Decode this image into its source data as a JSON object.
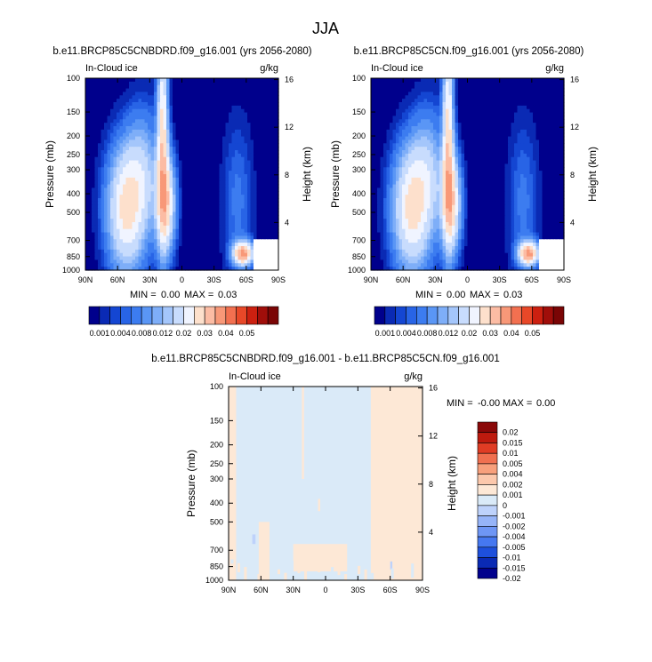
{
  "page_title": "JJA",
  "colors": {
    "seq": [
      "#00008c",
      "#0a2ab4",
      "#1446d2",
      "#2864e6",
      "#3c7cf0",
      "#5a96f5",
      "#7eaef8",
      "#a4c6fb",
      "#c8dcfd",
      "#f0f4ff",
      "#fde0cc",
      "#fcbca4",
      "#f89878",
      "#f27050",
      "#e84828",
      "#cc2010",
      "#a00e0a",
      "#7a0505"
    ],
    "div": [
      "#00008c",
      "#0a2ab4",
      "#1e50dc",
      "#4678f0",
      "#6e96f5",
      "#96b4f8",
      "#bed2fb",
      "#daeaf8",
      "#fde8d6",
      "#fcc8ac",
      "#f8a07c",
      "#f07050",
      "#e03c24",
      "#be1a0e",
      "#8a0808"
    ],
    "diff_background": "#daeaf8",
    "diff_positive": "#fde8d6",
    "diff_negative": "#bed2fb"
  },
  "chart_data": [
    {
      "type": "heatmap",
      "id": "left",
      "title": "b.e11.BRCP85C5CNBDRD.f09_g16.001 (yrs 2056-2080)",
      "variable_label": "In-Cloud ice",
      "units_label": "g/kg",
      "ylabel": "Pressure (mb)",
      "ylabel_right": "Height (km)",
      "x_ticks": [
        "90N",
        "60N",
        "30N",
        "0",
        "30S",
        "60S",
        "90S"
      ],
      "x_values": [
        90,
        60,
        30,
        0,
        -30,
        -60,
        -90
      ],
      "y_ticks": [
        "100",
        "150",
        "200",
        "250",
        "300",
        "400",
        "500",
        "700",
        "850",
        "1000"
      ],
      "y_values": [
        100,
        150,
        200,
        250,
        300,
        400,
        500,
        700,
        850,
        1000
      ],
      "right_ticks": [
        "16",
        "12",
        "8",
        "4"
      ],
      "right_values": [
        16,
        12,
        8,
        4
      ],
      "min_label": "MIN =",
      "min_value": "0.00",
      "max_label": "MAX =",
      "max_value": "0.03",
      "features": [
        {
          "lat": 52,
          "p": 480,
          "dlat": 18,
          "dp": 360,
          "peak": 0.021
        },
        {
          "lat": 18,
          "p": 180,
          "dlat": 5,
          "dp": 220,
          "peak": 0.02
        },
        {
          "lat": 15,
          "p": 450,
          "dlat": 9,
          "dp": 260,
          "peak": 0.021
        },
        {
          "lat": 36,
          "p": 300,
          "dlat": 15,
          "dp": 220,
          "peak": 0.009
        },
        {
          "lat": -52,
          "p": 440,
          "dlat": 14,
          "dp": 420,
          "peak": 0.0045
        },
        {
          "lat": -57,
          "p": 820,
          "dlat": 9,
          "dp": 110,
          "peak": 0.031
        }
      ]
    },
    {
      "type": "heatmap",
      "id": "right",
      "title": "b.e11.BRCP85C5CN.f09_g16.001 (yrs 2056-2080)",
      "variable_label": "In-Cloud ice",
      "units_label": "g/kg",
      "ylabel": "Pressure (mb)",
      "ylabel_right": "Height (km)",
      "x_ticks": [
        "90N",
        "60N",
        "30N",
        "0",
        "30S",
        "60S",
        "90S"
      ],
      "x_values": [
        90,
        60,
        30,
        0,
        -30,
        -60,
        -90
      ],
      "y_ticks": [
        "100",
        "150",
        "200",
        "250",
        "300",
        "400",
        "500",
        "700",
        "850",
        "1000"
      ],
      "y_values": [
        100,
        150,
        200,
        250,
        300,
        400,
        500,
        700,
        850,
        1000
      ],
      "right_ticks": [
        "16",
        "12",
        "8",
        "4"
      ],
      "right_values": [
        16,
        12,
        8,
        4
      ],
      "min_label": "MIN =",
      "min_value": "0.00",
      "max_label": "MAX =",
      "max_value": "0.03",
      "features": [
        {
          "lat": 52,
          "p": 480,
          "dlat": 18,
          "dp": 360,
          "peak": 0.021
        },
        {
          "lat": 18,
          "p": 180,
          "dlat": 5,
          "dp": 220,
          "peak": 0.02
        },
        {
          "lat": 15,
          "p": 450,
          "dlat": 9,
          "dp": 260,
          "peak": 0.021
        },
        {
          "lat": 36,
          "p": 300,
          "dlat": 15,
          "dp": 220,
          "peak": 0.009
        },
        {
          "lat": -52,
          "p": 440,
          "dlat": 14,
          "dp": 420,
          "peak": 0.0045
        },
        {
          "lat": -57,
          "p": 820,
          "dlat": 9,
          "dp": 110,
          "peak": 0.031
        }
      ]
    },
    {
      "type": "heatmap",
      "id": "diff",
      "title": "b.e11.BRCP85C5CNBDRD.f09_g16.001 - b.e11.BRCP85C5CN.f09_g16.001",
      "variable_label": "In-Cloud ice",
      "units_label": "g/kg",
      "ylabel": "Pressure (mb)",
      "ylabel_right": "Height (km)",
      "x_ticks": [
        "90N",
        "60N",
        "30N",
        "0",
        "30S",
        "60S",
        "90S"
      ],
      "x_values": [
        90,
        60,
        30,
        0,
        -30,
        -60,
        -90
      ],
      "y_ticks": [
        "100",
        "150",
        "200",
        "250",
        "300",
        "400",
        "500",
        "700",
        "850",
        "1000"
      ],
      "y_values": [
        100,
        150,
        200,
        250,
        300,
        400,
        500,
        700,
        850,
        1000
      ],
      "right_ticks": [
        "16",
        "12",
        "8",
        "4"
      ],
      "right_values": [
        16,
        12,
        8,
        4
      ],
      "min_label": "MIN =",
      "min_value": "-0.00",
      "max_label": "MAX =",
      "max_value": "0.00",
      "positive_regions": [
        {
          "lat_from": 90,
          "lat_to": 83,
          "p_from": 100,
          "p_to": 1000
        },
        {
          "lat_from": -42,
          "lat_to": -90,
          "p_from": 100,
          "p_to": 1000
        },
        {
          "lat_from": 62,
          "lat_to": 52,
          "p_from": 500,
          "p_to": 1000
        },
        {
          "lat_from": 30,
          "lat_to": -20,
          "p_from": 650,
          "p_to": 900
        },
        {
          "lat_from": 7,
          "lat_to": 5,
          "p_from": 380,
          "p_to": 440
        },
        {
          "lat_from": 22,
          "lat_to": 20,
          "p_from": 100,
          "p_to": 300
        }
      ],
      "negative_regions": [
        {
          "lat_from": -60,
          "lat_to": -62,
          "p_from": 800,
          "p_to": 880
        },
        {
          "lat_from": 68,
          "lat_to": 65,
          "p_from": 580,
          "p_to": 650
        }
      ]
    }
  ],
  "colorbar_top": {
    "labels": [
      "0.001",
      "0.004",
      "0.008",
      "0.012",
      "0.02",
      "0.03",
      "0.04",
      "0.05"
    ],
    "num_boxes": 18
  },
  "colorbar_diff": {
    "labels": [
      "0.02",
      "0.015",
      "0.01",
      "0.005",
      "0.004",
      "0.002",
      "0.001",
      "0",
      "-0.001",
      "-0.002",
      "-0.004",
      "-0.005",
      "-0.01",
      "-0.015",
      "-0.02"
    ]
  }
}
